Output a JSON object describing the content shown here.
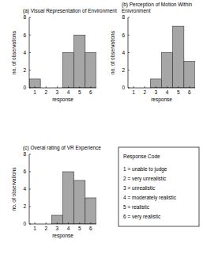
{
  "chart_data": [
    {
      "type": "bar",
      "title": "(a) Visual Representation of Environment",
      "x_label": "response",
      "y_label": "no. of observations",
      "x": [
        1,
        2,
        3,
        4,
        5,
        6
      ],
      "values": [
        1,
        0,
        0,
        4,
        6,
        4
      ],
      "xlim": [
        0.5,
        6.5
      ],
      "ylim": [
        0,
        8
      ],
      "xticks": [
        1,
        2,
        3,
        4,
        5,
        6
      ],
      "yticks": [
        0,
        2,
        4,
        6,
        8
      ],
      "color": "#a6a6a6",
      "grid": false
    },
    {
      "type": "bar",
      "title": "(b) Perception of Motion Within Enivronment",
      "x_label": "response",
      "y_label": "no. of observations",
      "x": [
        1,
        2,
        3,
        4,
        5,
        6
      ],
      "values": [
        0,
        0,
        1,
        4,
        7,
        3
      ],
      "xlim": [
        0.5,
        6.5
      ],
      "ylim": [
        0,
        8
      ],
      "xticks": [
        1,
        2,
        3,
        4,
        5,
        6
      ],
      "yticks": [
        0,
        2,
        4,
        6,
        8
      ],
      "color": "#a6a6a6",
      "grid": false
    },
    {
      "type": "bar",
      "title": "(c) Overal rating of VR Experience",
      "x_label": "response",
      "y_label": "no. of observations",
      "x": [
        1,
        2,
        3,
        4,
        5,
        6
      ],
      "values": [
        0,
        0,
        1,
        6,
        5,
        3
      ],
      "xlim": [
        0.5,
        6.5
      ],
      "ylim": [
        0,
        8
      ],
      "xticks": [
        1,
        2,
        3,
        4,
        5,
        6
      ],
      "yticks": [
        0,
        2,
        4,
        6,
        8
      ],
      "color": "#a6a6a6",
      "grid": false
    }
  ],
  "response_code": {
    "title": "Response Code",
    "items": [
      "1 = unable to judge",
      "2 = very unrealistic",
      "3 = unrealistic",
      "4 = moderately realistic",
      "5 = realistic",
      "6 = very realistic"
    ]
  }
}
